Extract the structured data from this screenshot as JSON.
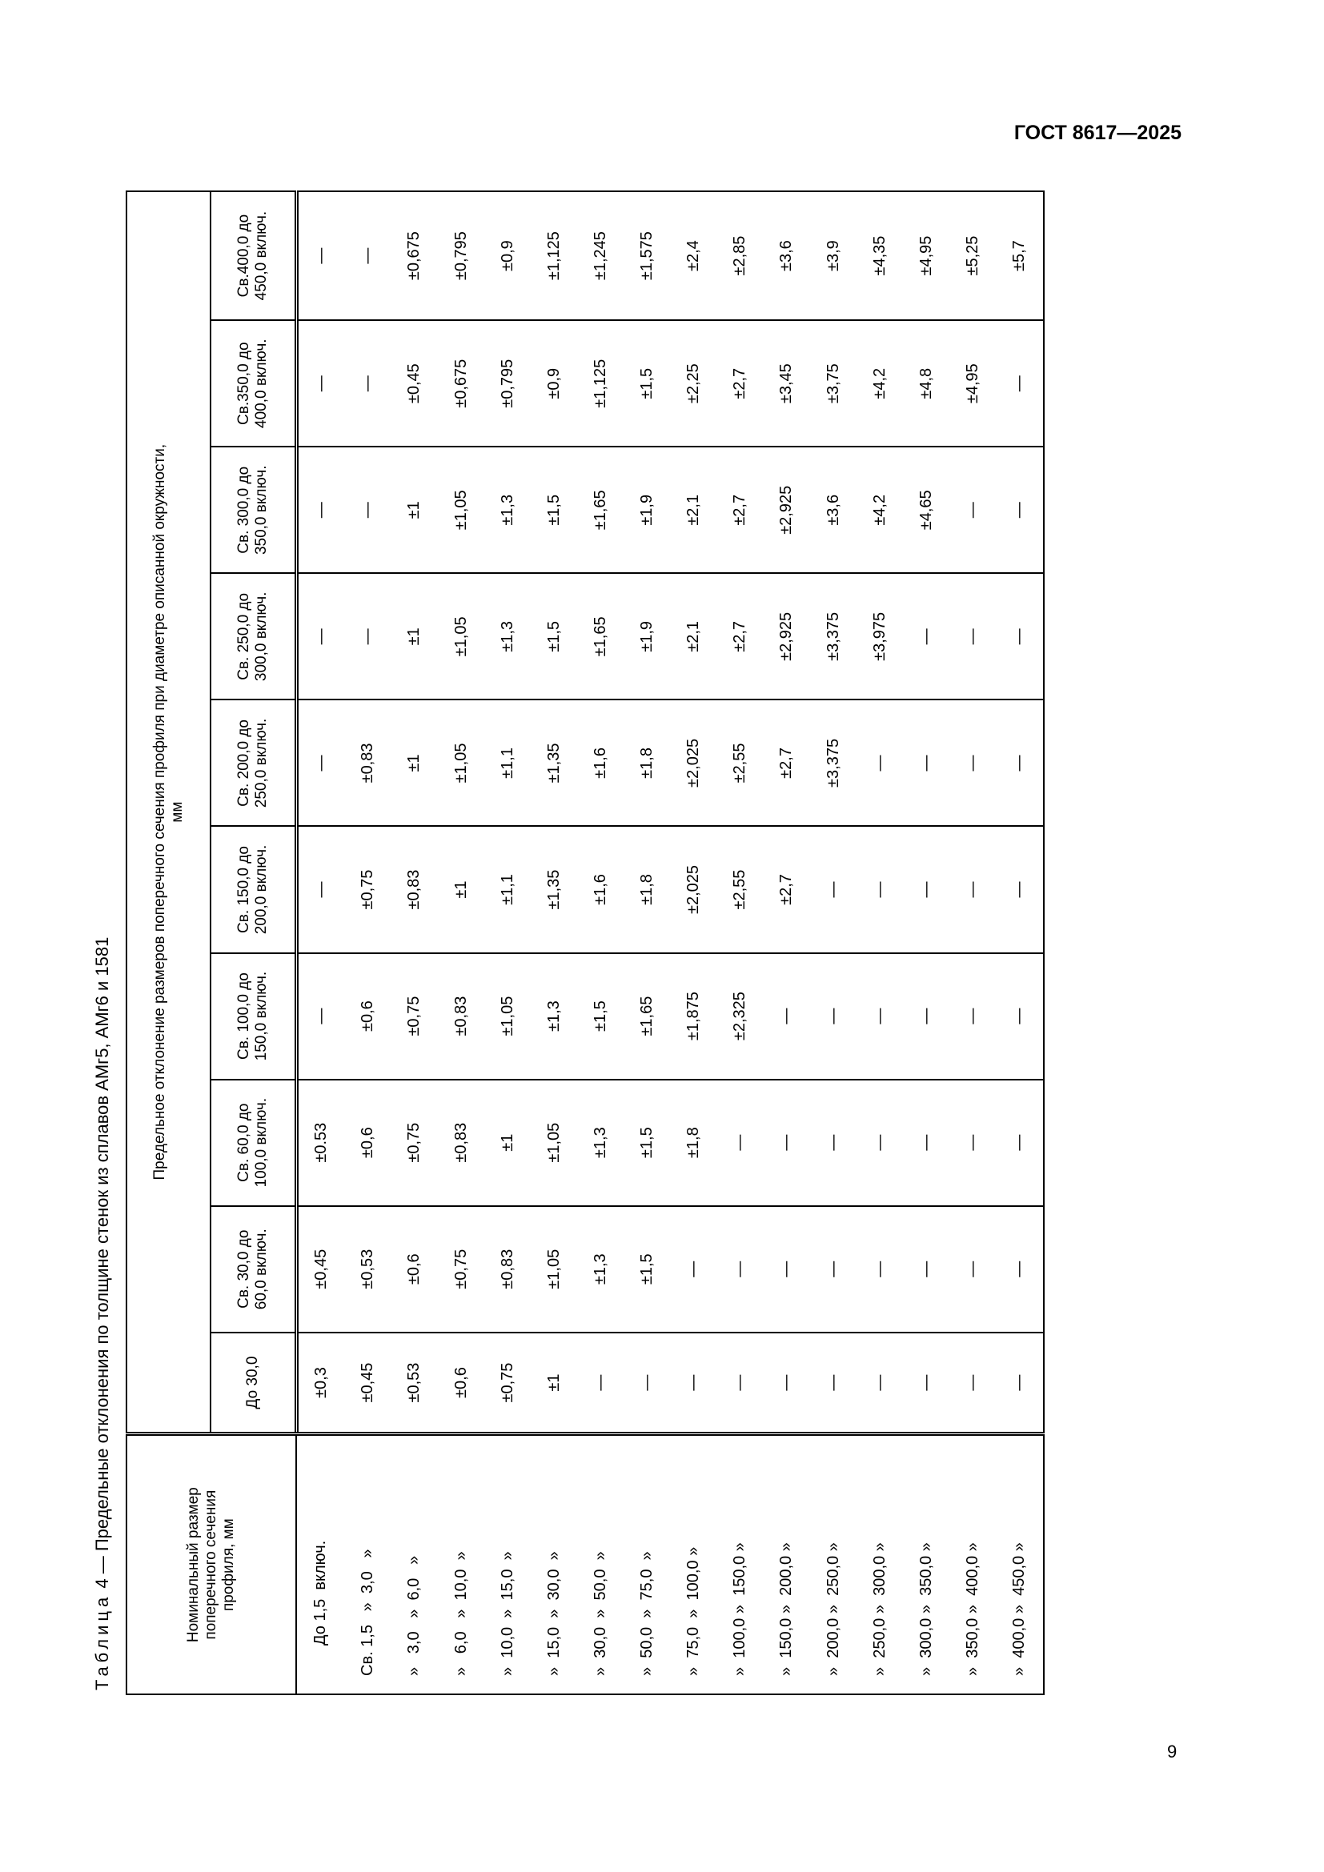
{
  "header": {
    "doc_code": "ГОСТ 8617—2025"
  },
  "footer": {
    "page_number": "9"
  },
  "table": {
    "caption_label": "Таблица",
    "caption_text": "4 — Предельные отклонения по толщине стенок из сплавов АМг5, АМг6 и 1581",
    "row_header": "Номинальный размер поперечного сечения профиля, мм",
    "group_header": "Предельное отклонение размеров поперечного сечения профиля при диаметре описанной окружности, мм",
    "columns": [
      "До 30,0",
      "Св. 30,0 до 60,0 включ.",
      "Св. 60,0 до 100,0 включ.",
      "Св. 100,0 до 150,0 включ.",
      "Св. 150,0 до 200,0 включ.",
      "Св. 200,0 до 250,0 включ.",
      "Св. 250,0 до 300,0 включ.",
      "Св. 300,0 до 350,0 включ.",
      "Св.350,0 до 400,0 включ.",
      "Св.400,0 до 450,0 включ."
    ],
    "rows": [
      {
        "label": "До 1,5  включ.",
        "values": [
          "±0,3",
          "±0,45",
          "±0.53",
          "—",
          "—",
          "—",
          "—",
          "—",
          "—",
          "—"
        ]
      },
      {
        "label": "Св. 1,5   »  3,0   »",
        "values": [
          "±0,45",
          "±0,53",
          "±0,6",
          "±0,6",
          "±0,75",
          "±0,83",
          "—",
          "—",
          "—",
          "—"
        ]
      },
      {
        "label": "»   3,0   »  6,0   »",
        "values": [
          "±0,53",
          "±0,6",
          "±0,75",
          "±0,75",
          "±0,83",
          "±1",
          "±1",
          "±1",
          "±0,45",
          "±0,675"
        ]
      },
      {
        "label": "»   6,0   »  10,0  »",
        "values": [
          "±0,6",
          "±0,75",
          "±0,83",
          "±0,83",
          "±1",
          "±1,05",
          "±1,05",
          "±1,05",
          "±0,675",
          "±0,795"
        ]
      },
      {
        "label": "»  10,0  »  15,0  »",
        "values": [
          "±0,75",
          "±0,83",
          "±1",
          "±1,05",
          "±1,1",
          "±1,1",
          "±1,3",
          "±1,3",
          "±0,795",
          "±0,9"
        ]
      },
      {
        "label": "»  15,0  »  30,0  »",
        "values": [
          "±1",
          "±1,05",
          "±1,05",
          "±1,3",
          "±1,35",
          "±1,35",
          "±1,5",
          "±1,5",
          "±0,9",
          "±1,125"
        ]
      },
      {
        "label": "»  30,0  »  50,0  »",
        "values": [
          "—",
          "±1,3",
          "±1,3",
          "±1,5",
          "±1,6",
          "±1,6",
          "±1,65",
          "±1,65",
          "±1,125",
          "±1,245"
        ]
      },
      {
        "label": "»  50,0  »  75,0  »",
        "values": [
          "—",
          "±1,5",
          "±1,5",
          "±1,65",
          "±1,8",
          "±1,8",
          "±1,9",
          "±1,9",
          "±1,5",
          "±1,575"
        ]
      },
      {
        "label": "»  75,0  »  100,0 »",
        "values": [
          "—",
          "—",
          "±1,8",
          "±1,875",
          "±2,025",
          "±2,025",
          "±2,1",
          "±2,1",
          "±2,25",
          "±2,4"
        ]
      },
      {
        "label": "»  100,0 »  150,0 »",
        "values": [
          "—",
          "—",
          "—",
          "±2,325",
          "±2,55",
          "±2,55",
          "±2,7",
          "±2,7",
          "±2,7",
          "±2,85"
        ]
      },
      {
        "label": "»  150,0 »  200,0 »",
        "values": [
          "—",
          "—",
          "—",
          "—",
          "±2,7",
          "±2,7",
          "±2,925",
          "±2,925",
          "±3,45",
          "±3,6"
        ]
      },
      {
        "label": "»  200,0 »  250,0 »",
        "values": [
          "—",
          "—",
          "—",
          "—",
          "—",
          "±3,375",
          "±3,375",
          "±3,6",
          "±3,75",
          "±3,9"
        ]
      },
      {
        "label": "»  250,0 »  300,0 »",
        "values": [
          "—",
          "—",
          "—",
          "—",
          "—",
          "—",
          "±3,975",
          "±4,2",
          "±4,2",
          "±4,35"
        ]
      },
      {
        "label": "»  300,0 »  350,0 »",
        "values": [
          "—",
          "—",
          "—",
          "—",
          "—",
          "—",
          "—",
          "±4,65",
          "±4,8",
          "±4,95"
        ]
      },
      {
        "label": "»  350,0 »  400,0 »",
        "values": [
          "—",
          "—",
          "—",
          "—",
          "—",
          "—",
          "—",
          "—",
          "±4,95",
          "±5,25"
        ]
      },
      {
        "label": "»  400,0 »  450,0 »",
        "values": [
          "—",
          "—",
          "—",
          "—",
          "—",
          "—",
          "—",
          "—",
          "—",
          "±5,7"
        ]
      }
    ]
  }
}
